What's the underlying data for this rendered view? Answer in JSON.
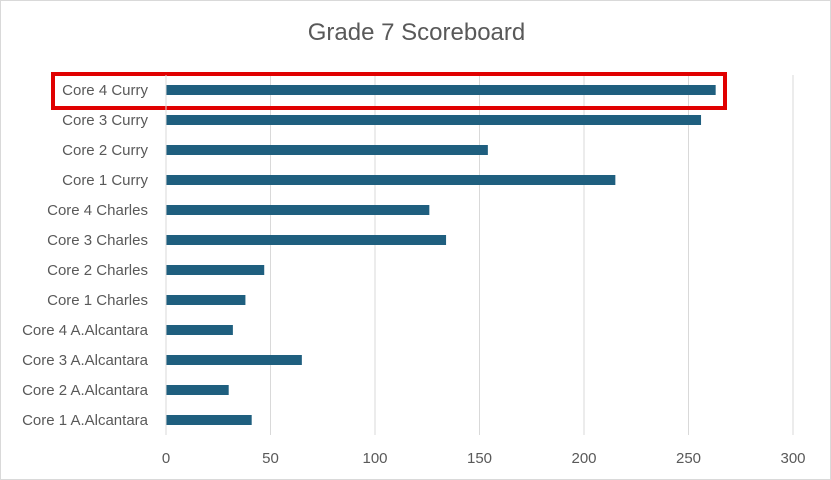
{
  "chart_data": {
    "type": "bar",
    "orientation": "horizontal",
    "title": "Grade 7 Scoreboard",
    "xlabel": "",
    "ylabel": "",
    "categories": [
      "Core 1 A.Alcantara",
      "Core 2 A.Alcantara",
      "Core 3 A.Alcantara",
      "Core 4 A.Alcantara",
      "Core 1 Charles",
      "Core 2 Charles",
      "Core 3 Charles",
      "Core 4 Charles",
      "Core 1 Curry",
      "Core 2 Curry",
      "Core 3 Curry",
      "Core 4 Curry"
    ],
    "values": [
      41,
      30,
      65,
      32,
      38,
      47,
      134,
      126,
      215,
      154,
      256,
      263
    ],
    "xlim": [
      0,
      300
    ],
    "xticks": [
      0,
      50,
      100,
      150,
      200,
      250,
      300
    ],
    "grid": true,
    "legend": "none",
    "bar_color": "#1f5f7f",
    "highlight": {
      "category": "Core 4 Curry",
      "color": "#e00000"
    }
  }
}
